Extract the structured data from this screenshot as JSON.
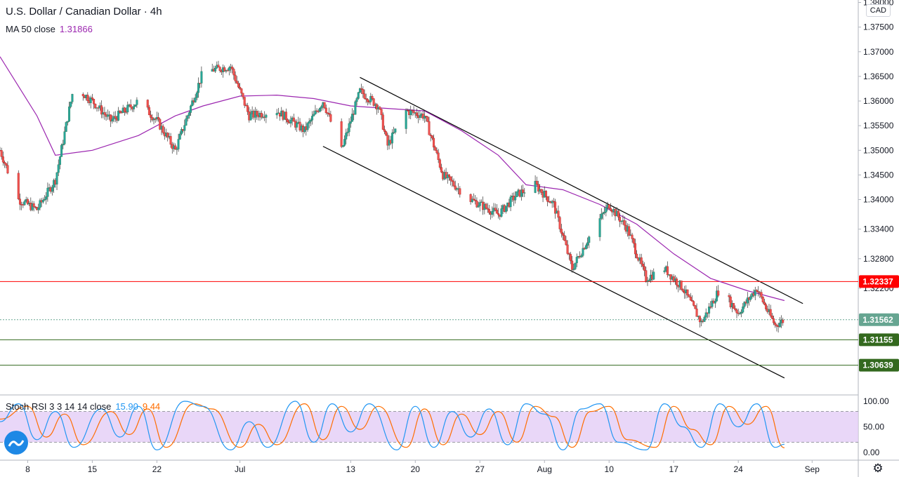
{
  "header": {
    "title": "U.S. Dollar / Canadian Dollar · 4h",
    "ma_label": "MA 50 close",
    "ma_value": "1.31866",
    "currency": "CAD"
  },
  "stoch": {
    "label": "Stoch RSI 3 3 14 14 close",
    "k_value": "15.90",
    "d_value": "9.44"
  },
  "icons": {
    "settings": "gear-icon",
    "logo": "tradingview-logo-icon",
    "chevron": "chevron-right-icon"
  },
  "colors": {
    "up": "#26a69a",
    "down": "#ef5350",
    "ma": "#9c27b0",
    "resistance": "#ff0000",
    "support": "#33691e",
    "current": "#66a591",
    "stoch_k": "#2196f3",
    "stoch_d": "#ff6d00",
    "stoch_band": "#e1c9f5"
  },
  "chart_data": {
    "type": "candlestick",
    "symbol": "USDCAD",
    "timeframe": "4h",
    "ylim": [
      1.3005,
      1.3805
    ],
    "y_ticks": [
      "1.38000",
      "1.37500",
      "1.37000",
      "1.36500",
      "1.36000",
      "1.35500",
      "1.35000",
      "1.34500",
      "1.34000",
      "1.33400",
      "1.32800",
      "1.32200"
    ],
    "x_ticks": [
      {
        "label": "8",
        "date": "2020-06-08"
      },
      {
        "label": "15",
        "date": "2020-06-15"
      },
      {
        "label": "22",
        "date": "2020-06-22"
      },
      {
        "label": "Jul",
        "date": "2020-07-01"
      },
      {
        "label": "13",
        "date": "2020-07-13"
      },
      {
        "label": "20",
        "date": "2020-07-20"
      },
      {
        "label": "27",
        "date": "2020-07-27"
      },
      {
        "label": "Aug",
        "date": "2020-08-03"
      },
      {
        "label": "10",
        "date": "2020-08-10"
      },
      {
        "label": "17",
        "date": "2020-08-17"
      },
      {
        "label": "24",
        "date": "2020-08-24"
      },
      {
        "label": "Sep",
        "date": "2020-09-01"
      }
    ],
    "xlim": [
      "2020-06-05",
      "2020-09-06"
    ],
    "price_path": [
      [
        "2020-06-05",
        1.35
      ],
      [
        "2020-06-07",
        1.34
      ],
      [
        "2020-06-09",
        1.338
      ],
      [
        "2020-06-11",
        1.344
      ],
      [
        "2020-06-13",
        1.363
      ],
      [
        "2020-06-15",
        1.36
      ],
      [
        "2020-06-17",
        1.356
      ],
      [
        "2020-06-20",
        1.36
      ],
      [
        "2020-06-22",
        1.356
      ],
      [
        "2020-06-24",
        1.35
      ],
      [
        "2020-06-27",
        1.366
      ],
      [
        "2020-06-30",
        1.367
      ],
      [
        "2020-07-02",
        1.357
      ],
      [
        "2020-07-05",
        1.358
      ],
      [
        "2020-07-08",
        1.354
      ],
      [
        "2020-07-10",
        1.36
      ],
      [
        "2020-07-12",
        1.35
      ],
      [
        "2020-07-14",
        1.362
      ],
      [
        "2020-07-16",
        1.359
      ],
      [
        "2020-07-17",
        1.351
      ],
      [
        "2020-07-19",
        1.358
      ],
      [
        "2020-07-21",
        1.357
      ],
      [
        "2020-07-23",
        1.345
      ],
      [
        "2020-07-26",
        1.34
      ],
      [
        "2020-07-29",
        1.337
      ],
      [
        "2020-07-31",
        1.341
      ],
      [
        "2020-08-02",
        1.343
      ],
      [
        "2020-08-04",
        1.339
      ],
      [
        "2020-08-06",
        1.326
      ],
      [
        "2020-08-08",
        1.333
      ],
      [
        "2020-08-10",
        1.339
      ],
      [
        "2020-08-12",
        1.334
      ],
      [
        "2020-08-14",
        1.324
      ],
      [
        "2020-08-16",
        1.326
      ],
      [
        "2020-08-18",
        1.322
      ],
      [
        "2020-08-20",
        1.315
      ],
      [
        "2020-08-22",
        1.322
      ],
      [
        "2020-08-24",
        1.317
      ],
      [
        "2020-08-26",
        1.322
      ],
      [
        "2020-08-27",
        1.318
      ],
      [
        "2020-08-28",
        1.3145
      ],
      [
        "2020-08-29",
        1.3156
      ]
    ],
    "ma50_path": [
      [
        "2020-06-05",
        1.369
      ],
      [
        "2020-06-09",
        1.357
      ],
      [
        "2020-06-11",
        1.349
      ],
      [
        "2020-06-15",
        1.35
      ],
      [
        "2020-06-20",
        1.353
      ],
      [
        "2020-06-24",
        1.357
      ],
      [
        "2020-06-27",
        1.359
      ],
      [
        "2020-07-01",
        1.361
      ],
      [
        "2020-07-05",
        1.3612
      ],
      [
        "2020-07-09",
        1.3605
      ],
      [
        "2020-07-13",
        1.359
      ],
      [
        "2020-07-17",
        1.3585
      ],
      [
        "2020-07-21",
        1.358
      ],
      [
        "2020-07-25",
        1.354
      ],
      [
        "2020-07-29",
        1.349
      ],
      [
        "2020-08-01",
        1.343
      ],
      [
        "2020-08-05",
        1.342
      ],
      [
        "2020-08-09",
        1.339
      ],
      [
        "2020-08-13",
        1.335
      ],
      [
        "2020-08-17",
        1.329
      ],
      [
        "2020-08-21",
        1.324
      ],
      [
        "2020-08-25",
        1.3215
      ],
      [
        "2020-08-29",
        1.3195
      ]
    ],
    "channel": {
      "upper": [
        [
          "2020-07-14",
          1.3648
        ],
        [
          "2020-08-31",
          1.3189
        ]
      ],
      "lower": [
        [
          "2020-07-10",
          1.3508
        ],
        [
          "2020-08-29",
          1.3038
        ]
      ]
    },
    "horizontal_levels": [
      {
        "value": "1.32337",
        "kind": "resistance"
      },
      {
        "value": "1.31562",
        "kind": "current"
      },
      {
        "value": "1.31155",
        "kind": "support"
      },
      {
        "value": "1.30639",
        "kind": "support"
      }
    ],
    "stoch_panel": {
      "ylim": [
        0,
        100
      ],
      "y_ticks": [
        "100.00",
        "50.00",
        "0.00"
      ],
      "band": [
        20,
        80
      ],
      "k_path": [
        [
          "2020-06-05",
          60
        ],
        [
          "2020-06-07",
          95
        ],
        [
          "2020-06-09",
          25
        ],
        [
          "2020-06-11",
          80
        ],
        [
          "2020-06-13",
          10
        ],
        [
          "2020-06-16",
          85
        ],
        [
          "2020-06-18",
          30
        ],
        [
          "2020-06-20",
          90
        ],
        [
          "2020-06-22",
          5
        ],
        [
          "2020-06-25",
          100
        ],
        [
          "2020-06-27",
          90
        ],
        [
          "2020-06-30",
          5
        ],
        [
          "2020-07-02",
          60
        ],
        [
          "2020-07-04",
          10
        ],
        [
          "2020-07-07",
          100
        ],
        [
          "2020-07-09",
          20
        ],
        [
          "2020-07-11",
          95
        ],
        [
          "2020-07-13",
          40
        ],
        [
          "2020-07-15",
          95
        ],
        [
          "2020-07-18",
          5
        ],
        [
          "2020-07-20",
          90
        ],
        [
          "2020-07-22",
          10
        ],
        [
          "2020-07-24",
          80
        ],
        [
          "2020-07-26",
          30
        ],
        [
          "2020-07-28",
          85
        ],
        [
          "2020-07-30",
          15
        ],
        [
          "2020-08-01",
          95
        ],
        [
          "2020-08-03",
          75
        ],
        [
          "2020-08-05",
          5
        ],
        [
          "2020-08-07",
          85
        ],
        [
          "2020-08-09",
          95
        ],
        [
          "2020-08-11",
          20
        ],
        [
          "2020-08-14",
          5
        ],
        [
          "2020-08-16",
          95
        ],
        [
          "2020-08-18",
          50
        ],
        [
          "2020-08-20",
          10
        ],
        [
          "2020-08-22",
          95
        ],
        [
          "2020-08-24",
          50
        ],
        [
          "2020-08-26",
          95
        ],
        [
          "2020-08-28",
          10
        ],
        [
          "2020-08-29",
          16
        ]
      ],
      "d_path": [
        [
          "2020-06-05",
          65
        ],
        [
          "2020-06-08",
          90
        ],
        [
          "2020-06-10",
          30
        ],
        [
          "2020-06-12",
          75
        ],
        [
          "2020-06-14",
          15
        ],
        [
          "2020-06-17",
          80
        ],
        [
          "2020-06-19",
          35
        ],
        [
          "2020-06-21",
          85
        ],
        [
          "2020-06-23",
          10
        ],
        [
          "2020-06-26",
          95
        ],
        [
          "2020-06-28",
          85
        ],
        [
          "2020-07-01",
          10
        ],
        [
          "2020-07-03",
          55
        ],
        [
          "2020-07-05",
          15
        ],
        [
          "2020-07-08",
          95
        ],
        [
          "2020-07-10",
          25
        ],
        [
          "2020-07-12",
          90
        ],
        [
          "2020-07-14",
          45
        ],
        [
          "2020-07-16",
          90
        ],
        [
          "2020-07-19",
          10
        ],
        [
          "2020-07-21",
          85
        ],
        [
          "2020-07-23",
          15
        ],
        [
          "2020-07-25",
          75
        ],
        [
          "2020-07-27",
          35
        ],
        [
          "2020-07-29",
          80
        ],
        [
          "2020-07-31",
          20
        ],
        [
          "2020-08-02",
          90
        ],
        [
          "2020-08-04",
          70
        ],
        [
          "2020-08-06",
          10
        ],
        [
          "2020-08-08",
          80
        ],
        [
          "2020-08-10",
          90
        ],
        [
          "2020-08-12",
          25
        ],
        [
          "2020-08-15",
          10
        ],
        [
          "2020-08-17",
          90
        ],
        [
          "2020-08-19",
          45
        ],
        [
          "2020-08-21",
          15
        ],
        [
          "2020-08-23",
          90
        ],
        [
          "2020-08-25",
          55
        ],
        [
          "2020-08-27",
          90
        ],
        [
          "2020-08-29",
          9
        ]
      ]
    }
  }
}
